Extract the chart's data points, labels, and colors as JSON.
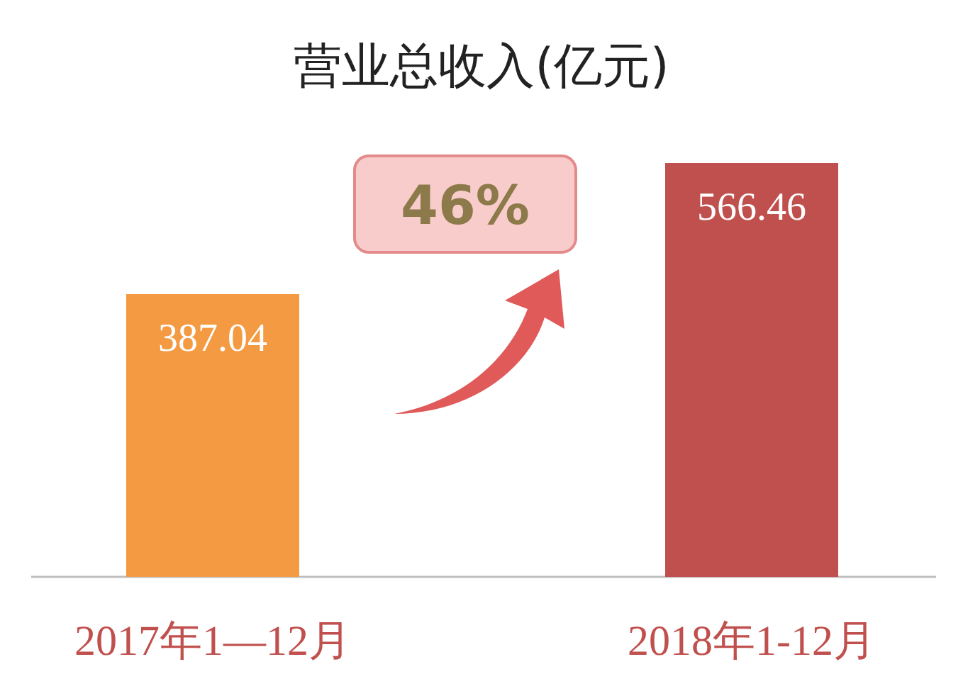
{
  "chart_data": {
    "type": "bar",
    "title": "营业总收入(亿元)",
    "categories": [
      "2017年1—12月",
      "2018年1-12月"
    ],
    "values": [
      387.04,
      566.46
    ],
    "colors": [
      "#f39a43",
      "#c0504d"
    ],
    "data_labels": true,
    "annotations": [
      "46%"
    ]
  }
}
